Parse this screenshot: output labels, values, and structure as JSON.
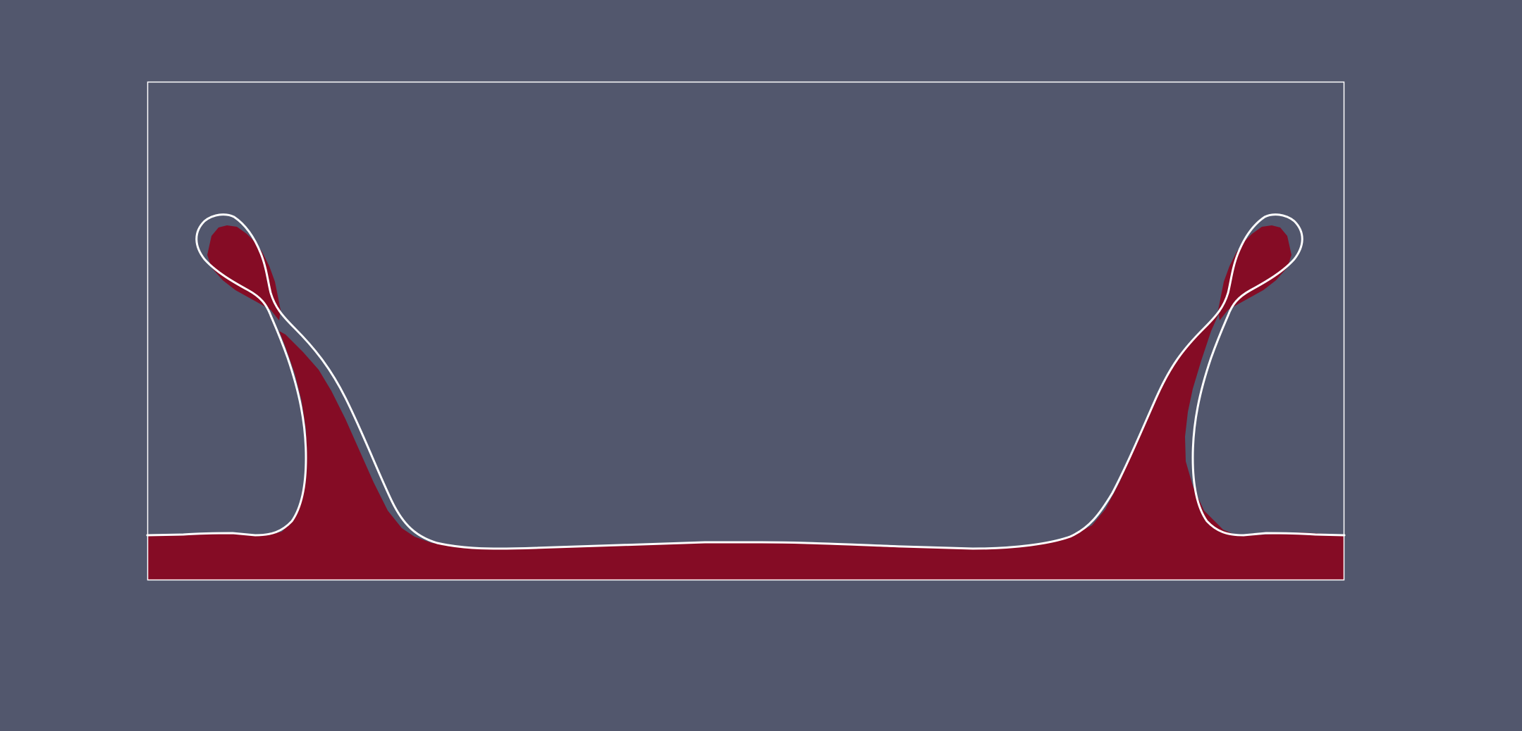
{
  "viewport": {
    "background_color": "#52576d"
  },
  "scene": {
    "domain_box_color": "#ffffff",
    "fluid_color": "#850c25",
    "interface_contour_color": "#ffffff",
    "mirror_symmetric": true
  }
}
